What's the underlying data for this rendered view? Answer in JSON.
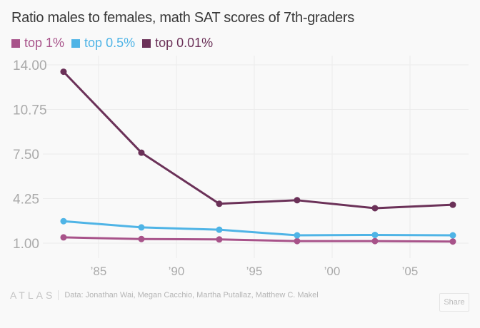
{
  "chart_data": {
    "type": "line",
    "title": "Ratio males to females, math SAT scores of 7th-graders",
    "xlabel": "",
    "ylabel": "",
    "x": [
      1982.75,
      1987.75,
      1992.75,
      1997.75,
      2002.75,
      2007.75
    ],
    "x_ticks": [
      1985,
      1990,
      1995,
      2000,
      2005
    ],
    "x_tick_labels": [
      "’85",
      "’90",
      "’95",
      "’00",
      "’05"
    ],
    "y_ticks": [
      1.0,
      4.25,
      7.5,
      10.75,
      14.0
    ],
    "y_tick_labels": [
      "1.00",
      "4.25",
      "7.50",
      "10.75",
      "14.00"
    ],
    "ylim": [
      1.0,
      14.0
    ],
    "grid": true,
    "legend_position": "top-left",
    "series": [
      {
        "name": "top 1%",
        "color": "#a8538a",
        "values": [
          1.42,
          1.3,
          1.27,
          1.15,
          1.15,
          1.12
        ]
      },
      {
        "name": "top 0.5%",
        "color": "#4fb4e6",
        "values": [
          2.6,
          2.15,
          1.98,
          1.57,
          1.6,
          1.57
        ]
      },
      {
        "name": "top 0.01%",
        "color": "#6b3158",
        "values": [
          13.5,
          7.6,
          3.87,
          4.13,
          3.55,
          3.8
        ]
      }
    ]
  },
  "footer": {
    "logo": "ATLAS",
    "source": "Data:  Jonathan Wai, Megan Cacchio, Martha Putallaz, Matthew C. Makel",
    "share_label": "Share"
  }
}
